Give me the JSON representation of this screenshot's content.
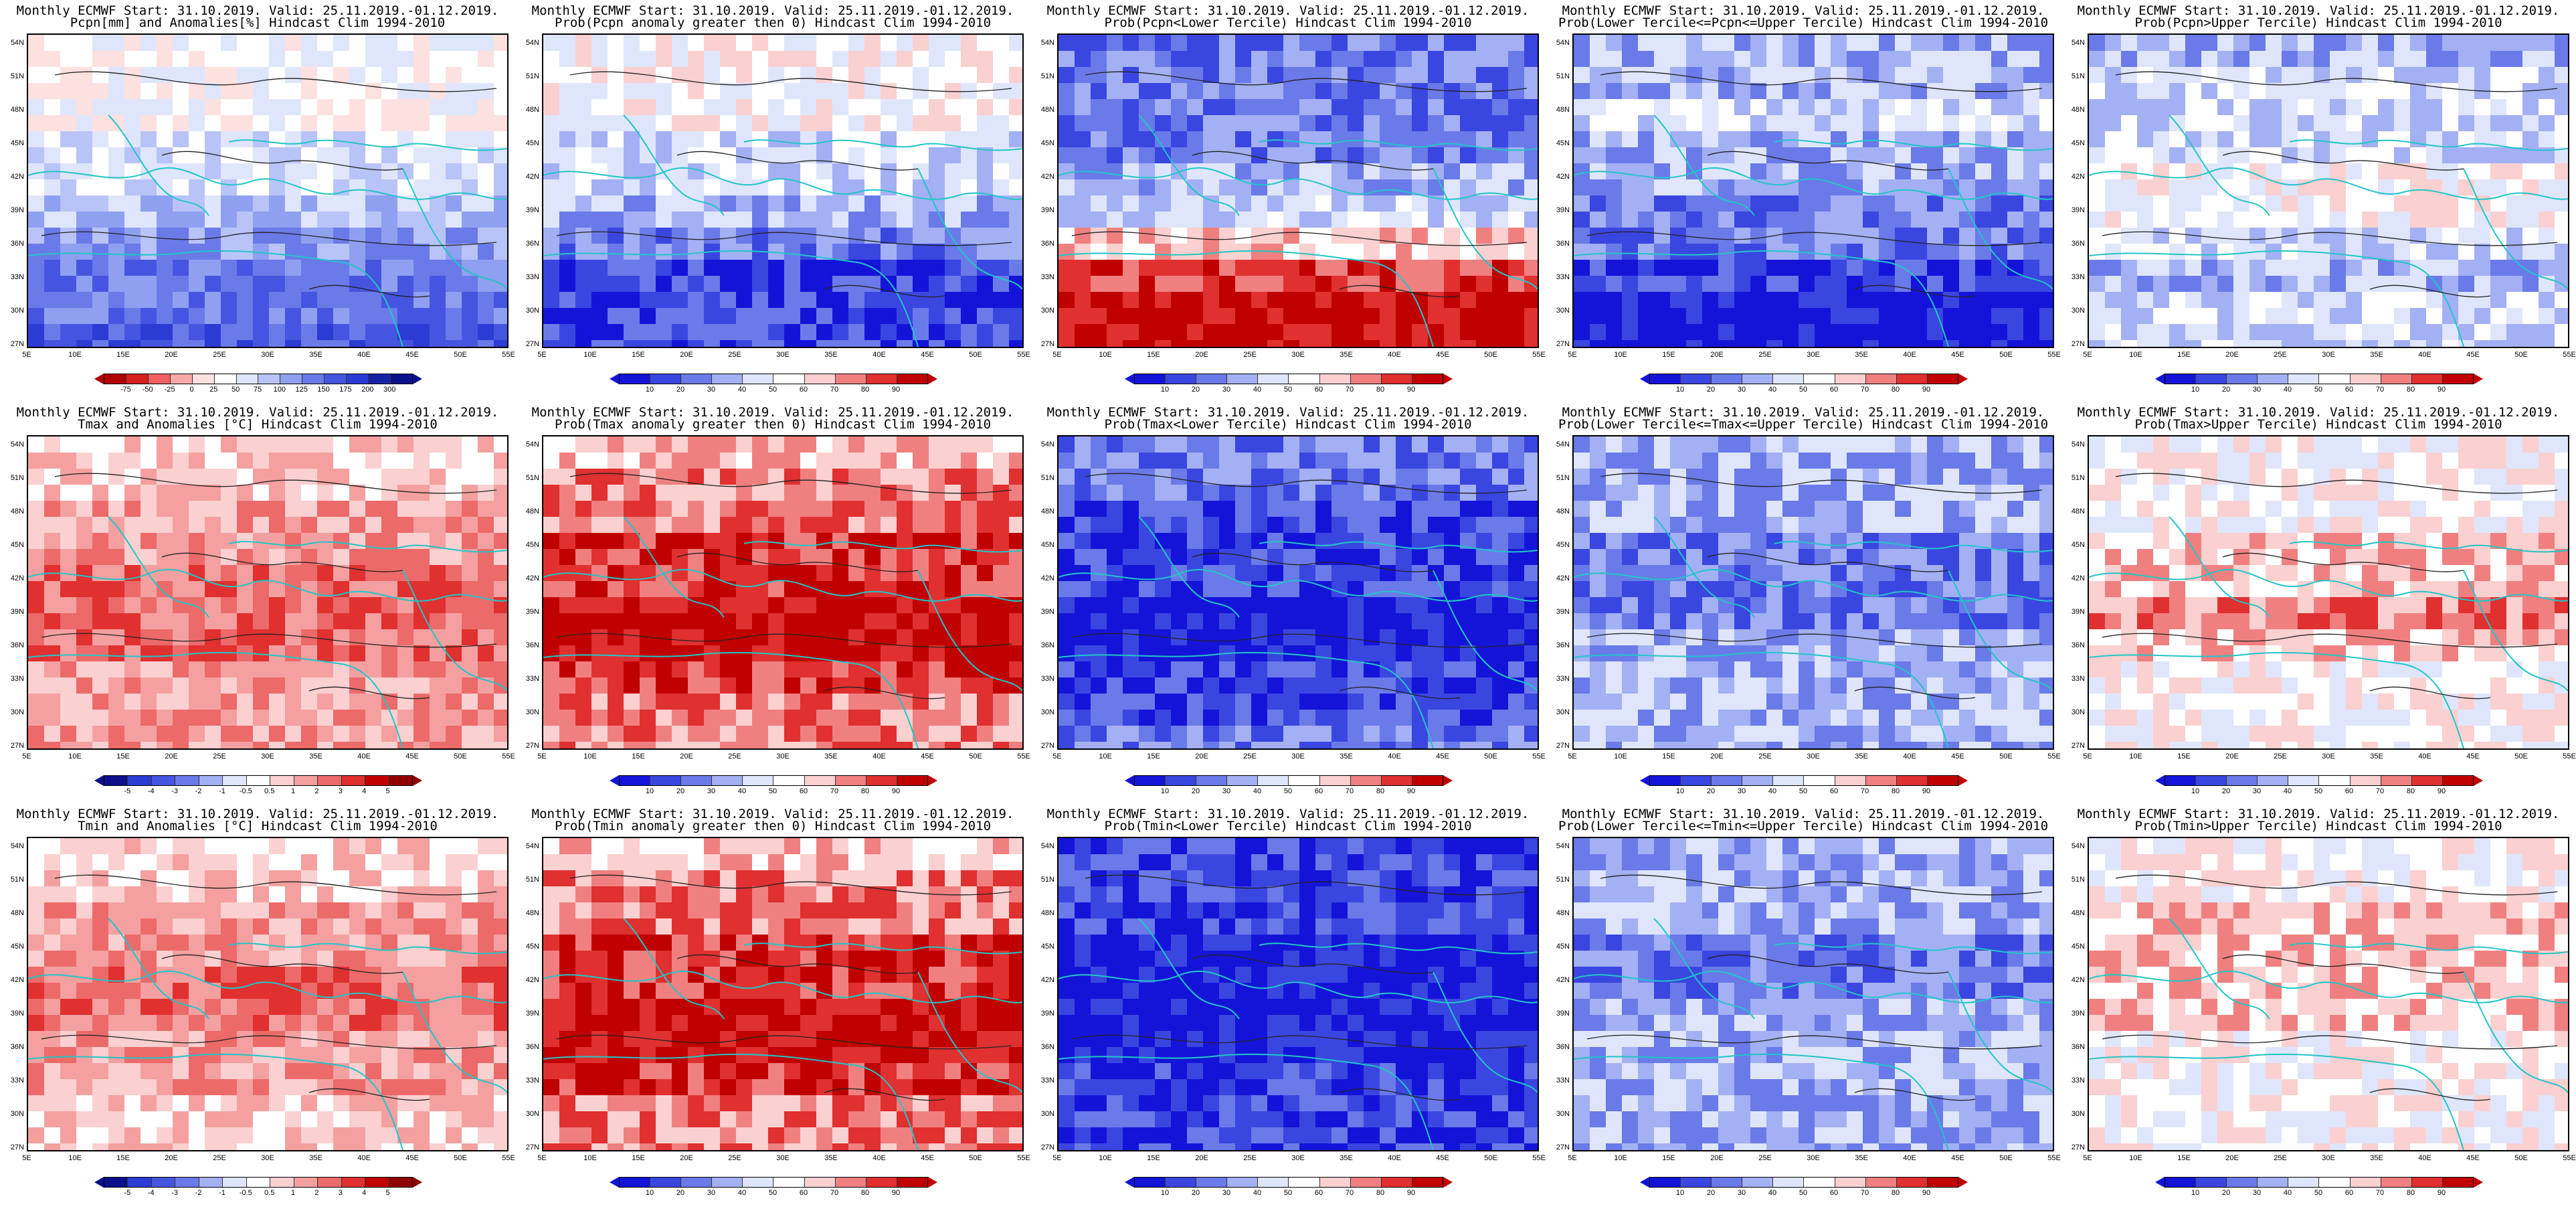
{
  "title_line1": "Monthly ECMWF Start: 31.10.2019. Valid: 25.11.2019.-01.12.2019.",
  "axes": {
    "lat": [
      "54N",
      "51N",
      "48N",
      "45N",
      "42N",
      "39N",
      "36N",
      "33N",
      "30N",
      "27N"
    ],
    "lon": [
      "5E",
      "10E",
      "15E",
      "20E",
      "25E",
      "30E",
      "35E",
      "40E",
      "45E",
      "50E",
      "55E"
    ]
  },
  "colors": {
    "map_bg": "#ffffff",
    "coast": "#22c5c8",
    "contour": "#222222"
  },
  "panels": [
    {
      "title2": "Pcpn[mm] and Anomalies[%] Hindcast Clim 1994-2010",
      "scheme": "anom_pcpn",
      "colorbar": {
        "ticks": [
          "-75",
          "-50",
          "-25",
          "0",
          "25",
          "50",
          "75",
          "100",
          "125",
          "150",
          "175",
          "200",
          "300"
        ],
        "colors": [
          "#b10000",
          "#d72020",
          "#f06060",
          "#f9a9a9",
          "#fde0e0",
          "#ffffff",
          "#dfe6fb",
          "#b8c4f7",
          "#8fa0f0",
          "#6a7ae8",
          "#4655e0",
          "#2c3bd4",
          "#1a22a8",
          "#0b108a"
        ]
      }
    },
    {
      "title2": "Prob(Pcpn anomaly greater then 0) Hindcast Clim 1994-2010",
      "scheme": "prob",
      "colorbar": {
        "ticks": [
          "10",
          "20",
          "30",
          "40",
          "50",
          "60",
          "70",
          "80",
          "90"
        ],
        "colors": [
          "#1414d8",
          "#3a46e0",
          "#6a7ae8",
          "#a3b0f3",
          "#dfe6fb",
          "#ffffff",
          "#fbd0d0",
          "#f08080",
          "#e03030",
          "#c00000"
        ]
      }
    },
    {
      "title2": "Prob(Pcpn<Lower Tercile) Hindcast Clim 1994-2010",
      "scheme": "prob",
      "colorbar": {
        "ticks": [
          "10",
          "20",
          "30",
          "40",
          "50",
          "60",
          "70",
          "80",
          "90"
        ],
        "colors": [
          "#1414d8",
          "#3a46e0",
          "#6a7ae8",
          "#a3b0f3",
          "#dfe6fb",
          "#ffffff",
          "#fbd0d0",
          "#f08080",
          "#e03030",
          "#c00000"
        ]
      }
    },
    {
      "title2": "Prob(Lower Tercile<=Pcpn<=Upper Tercile) Hindcast Clim 1994-2010",
      "scheme": "prob",
      "colorbar": {
        "ticks": [
          "10",
          "20",
          "30",
          "40",
          "50",
          "60",
          "70",
          "80",
          "90"
        ],
        "colors": [
          "#1414d8",
          "#3a46e0",
          "#6a7ae8",
          "#a3b0f3",
          "#dfe6fb",
          "#ffffff",
          "#fbd0d0",
          "#f08080",
          "#e03030",
          "#c00000"
        ]
      }
    },
    {
      "title2": "Prob(Pcpn>Upper Tercile) Hindcast Clim 1994-2010",
      "scheme": "prob",
      "colorbar": {
        "ticks": [
          "10",
          "20",
          "30",
          "40",
          "50",
          "60",
          "70",
          "80",
          "90"
        ],
        "colors": [
          "#1414d8",
          "#3a46e0",
          "#6a7ae8",
          "#a3b0f3",
          "#dfe6fb",
          "#ffffff",
          "#fbd0d0",
          "#f08080",
          "#e03030",
          "#c00000"
        ]
      }
    },
    {
      "title2": "Tmax and Anomalies [°C] Hindcast Clim 1994-2010",
      "scheme": "anom_t",
      "colorbar": {
        "ticks": [
          "-5",
          "-4",
          "-3",
          "-2",
          "-1",
          "-0.5",
          "0.5",
          "1",
          "2",
          "3",
          "4",
          "5"
        ],
        "colors": [
          "#0b108a",
          "#2c3bd4",
          "#4655e0",
          "#6a7ae8",
          "#a3b0f3",
          "#dfe6fb",
          "#ffffff",
          "#fbd0d0",
          "#f4a0a0",
          "#ec6a6a",
          "#e03030",
          "#c00000",
          "#900000"
        ]
      }
    },
    {
      "title2": "Prob(Tmax anomaly greater then 0) Hindcast Clim 1994-2010",
      "scheme": "prob",
      "colorbar": {
        "ticks": [
          "10",
          "20",
          "30",
          "40",
          "50",
          "60",
          "70",
          "80",
          "90"
        ],
        "colors": [
          "#1414d8",
          "#3a46e0",
          "#6a7ae8",
          "#a3b0f3",
          "#dfe6fb",
          "#ffffff",
          "#fbd0d0",
          "#f08080",
          "#e03030",
          "#c00000"
        ]
      }
    },
    {
      "title2": "Prob(Tmax<Lower Tercile) Hindcast Clim 1994-2010",
      "scheme": "prob",
      "colorbar": {
        "ticks": [
          "10",
          "20",
          "30",
          "40",
          "50",
          "60",
          "70",
          "80",
          "90"
        ],
        "colors": [
          "#1414d8",
          "#3a46e0",
          "#6a7ae8",
          "#a3b0f3",
          "#dfe6fb",
          "#ffffff",
          "#fbd0d0",
          "#f08080",
          "#e03030",
          "#c00000"
        ]
      }
    },
    {
      "title2": "Prob(Lower Tercile<=Tmax<=Upper Tercile) Hindcast Clim 1994-2010",
      "scheme": "prob",
      "colorbar": {
        "ticks": [
          "10",
          "20",
          "30",
          "40",
          "50",
          "60",
          "70",
          "80",
          "90"
        ],
        "colors": [
          "#1414d8",
          "#3a46e0",
          "#6a7ae8",
          "#a3b0f3",
          "#dfe6fb",
          "#ffffff",
          "#fbd0d0",
          "#f08080",
          "#e03030",
          "#c00000"
        ]
      }
    },
    {
      "title2": "Prob(Tmax>Upper Tercile) Hindcast Clim 1994-2010",
      "scheme": "prob",
      "colorbar": {
        "ticks": [
          "10",
          "20",
          "30",
          "40",
          "50",
          "60",
          "70",
          "80",
          "90"
        ],
        "colors": [
          "#1414d8",
          "#3a46e0",
          "#6a7ae8",
          "#a3b0f3",
          "#dfe6fb",
          "#ffffff",
          "#fbd0d0",
          "#f08080",
          "#e03030",
          "#c00000"
        ]
      }
    },
    {
      "title2": "Tmin and Anomalies [°C] Hindcast Clim 1994-2010",
      "scheme": "anom_t",
      "colorbar": {
        "ticks": [
          "-5",
          "-4",
          "-3",
          "-2",
          "-1",
          "-0.5",
          "0.5",
          "1",
          "2",
          "3",
          "4",
          "5"
        ],
        "colors": [
          "#0b108a",
          "#2c3bd4",
          "#4655e0",
          "#6a7ae8",
          "#a3b0f3",
          "#dfe6fb",
          "#ffffff",
          "#fbd0d0",
          "#f4a0a0",
          "#ec6a6a",
          "#e03030",
          "#c00000",
          "#900000"
        ]
      }
    },
    {
      "title2": "Prob(Tmin anomaly greater then 0) Hindcast Clim 1994-2010",
      "scheme": "prob",
      "colorbar": {
        "ticks": [
          "10",
          "20",
          "30",
          "40",
          "50",
          "60",
          "70",
          "80",
          "90"
        ],
        "colors": [
          "#1414d8",
          "#3a46e0",
          "#6a7ae8",
          "#a3b0f3",
          "#dfe6fb",
          "#ffffff",
          "#fbd0d0",
          "#f08080",
          "#e03030",
          "#c00000"
        ]
      }
    },
    {
      "title2": "Prob(Tmin<Lower Tercile) Hindcast Clim 1994-2010",
      "scheme": "prob",
      "colorbar": {
        "ticks": [
          "10",
          "20",
          "30",
          "40",
          "50",
          "60",
          "70",
          "80",
          "90"
        ],
        "colors": [
          "#1414d8",
          "#3a46e0",
          "#6a7ae8",
          "#a3b0f3",
          "#dfe6fb",
          "#ffffff",
          "#fbd0d0",
          "#f08080",
          "#e03030",
          "#c00000"
        ]
      }
    },
    {
      "title2": "Prob(Lower Tercile<=Tmin<=Upper Tercile) Hindcast Clim 1994-2010",
      "scheme": "prob",
      "colorbar": {
        "ticks": [
          "10",
          "20",
          "30",
          "40",
          "50",
          "60",
          "70",
          "80",
          "90"
        ],
        "colors": [
          "#1414d8",
          "#3a46e0",
          "#6a7ae8",
          "#a3b0f3",
          "#dfe6fb",
          "#ffffff",
          "#fbd0d0",
          "#f08080",
          "#e03030",
          "#c00000"
        ]
      }
    },
    {
      "title2": "Prob(Tmin>Upper Tercile) Hindcast Clim 1994-2010",
      "scheme": "prob",
      "colorbar": {
        "ticks": [
          "10",
          "20",
          "30",
          "40",
          "50",
          "60",
          "70",
          "80",
          "90"
        ],
        "colors": [
          "#1414d8",
          "#3a46e0",
          "#6a7ae8",
          "#a3b0f3",
          "#dfe6fb",
          "#ffffff",
          "#fbd0d0",
          "#f08080",
          "#e03030",
          "#c00000"
        ]
      }
    }
  ]
}
